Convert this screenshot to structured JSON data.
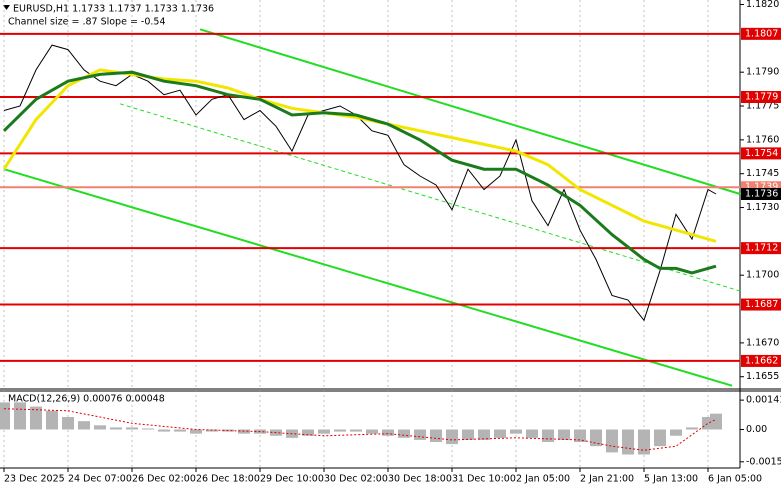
{
  "chart_data": [
    {
      "type": "line",
      "title": "EURUSD,H1  1.1733 1.1737 1.1733 1.1736",
      "subtitle": "Channel size = .87 Slope = -0.54",
      "xlim": [
        -1,
        184
      ],
      "xticks": [
        {
          "value": 0,
          "label": "23 Dec 2025"
        },
        {
          "value": 16,
          "label": "24 Dec 07:00"
        },
        {
          "value": 32,
          "label": "26 Dec 02:00"
        },
        {
          "value": 48,
          "label": "26 Dec 18:00"
        },
        {
          "value": 64,
          "label": "29 Dec 10:00"
        },
        {
          "value": 80,
          "label": "30 Dec 02:00"
        },
        {
          "value": 96,
          "label": "30 Dec 18:00"
        },
        {
          "value": 112,
          "label": "31 Dec 10:00"
        },
        {
          "value": 128,
          "label": "2 Jan 05:00"
        },
        {
          "value": 144,
          "label": "2 Jan 21:00"
        },
        {
          "value": 160,
          "label": "5 Jan 13:00"
        },
        {
          "value": 176,
          "label": "6 Jan 05:00"
        }
      ],
      "ylim": [
        1.165,
        1.1822
      ],
      "yticks": [
        {
          "value": 1.182,
          "label": "1.1820"
        },
        {
          "value": 1.179,
          "label": "1.1790"
        },
        1.1775,
        {
          "value": 1.176,
          "label": "1.1760"
        },
        1.1745,
        {
          "value": 1.173,
          "label": "1.1730"
        },
        {
          "value": 1.17,
          "label": "1.1700"
        },
        {
          "value": 1.167,
          "label": "1.1670"
        },
        1.1655
      ],
      "series": [
        {
          "color": "#000000",
          "x": [
            0,
            4,
            8,
            12,
            16,
            20,
            24,
            28,
            32,
            36,
            40,
            44,
            48,
            52,
            56,
            60,
            64,
            68,
            72,
            76,
            80,
            84,
            88,
            92,
            96,
            100,
            104,
            108,
            112,
            116,
            120,
            124,
            128,
            132,
            136,
            140,
            144,
            148,
            152,
            156,
            160,
            164,
            168,
            172,
            176,
            178
          ],
          "values": [
            1.1773,
            1.1775,
            1.1791,
            1.1802,
            1.18,
            1.1791,
            1.1786,
            1.1784,
            1.1789,
            1.1786,
            1.178,
            1.1782,
            1.1771,
            1.1778,
            1.178,
            1.1769,
            1.1773,
            1.1766,
            1.1755,
            1.1771,
            1.1773,
            1.1775,
            1.1771,
            1.1764,
            1.1762,
            1.1749,
            1.1744,
            1.174,
            1.1729,
            1.1747,
            1.1738,
            1.1744,
            1.176,
            1.1733,
            1.1722,
            1.1738,
            1.172,
            1.1707,
            1.1691,
            1.1689,
            1.168,
            1.1702,
            1.1727,
            1.1716,
            1.1738,
            1.1736
          ]
        },
        {
          "color": "#f2e600",
          "x": [
            0,
            8,
            16,
            24,
            32,
            40,
            48,
            56,
            64,
            72,
            80,
            88,
            96,
            104,
            112,
            120,
            128,
            136,
            144,
            152,
            160,
            168,
            176,
            178
          ],
          "values": [
            1.1747,
            1.1769,
            1.1784,
            1.1791,
            1.1789,
            1.1787,
            1.1786,
            1.1783,
            1.1778,
            1.1774,
            1.1772,
            1.177,
            1.1767,
            1.1764,
            1.1761,
            1.1758,
            1.1755,
            1.1749,
            1.1738,
            1.1731,
            1.1724,
            1.172,
            1.1716,
            1.1715
          ]
        },
        {
          "color": "#1b7a1b",
          "x": [
            0,
            8,
            16,
            24,
            32,
            40,
            48,
            56,
            64,
            72,
            80,
            88,
            96,
            104,
            112,
            120,
            128,
            136,
            144,
            152,
            160,
            164,
            168,
            172,
            178
          ],
          "values": [
            1.1764,
            1.1778,
            1.1786,
            1.1789,
            1.179,
            1.1786,
            1.1784,
            1.178,
            1.1778,
            1.1771,
            1.1772,
            1.1771,
            1.1767,
            1.176,
            1.1751,
            1.1747,
            1.1747,
            1.174,
            1.1731,
            1.1718,
            1.1707,
            1.1703,
            1.1703,
            1.1701,
            1.1704
          ]
        }
      ],
      "channels": [
        {
          "color": "#22dd22",
          "x": [
            49,
            184
          ],
          "values": [
            1.1809,
            1.1736
          ]
        },
        {
          "color": "#22dd22",
          "x": [
            0,
            182
          ],
          "values": [
            1.1747,
            1.1651
          ]
        },
        {
          "color": "#22dd22",
          "dashed": true,
          "x": [
            29,
            184
          ],
          "values": [
            1.1776,
            1.1693
          ]
        }
      ],
      "levels": [
        {
          "value": 1.1807,
          "color": "#e00000"
        },
        {
          "value": 1.1779,
          "color": "#e00000"
        },
        {
          "value": 1.1754,
          "color": "#e00000"
        },
        {
          "value": 1.1739,
          "color": "#f08070"
        },
        {
          "value": 1.1712,
          "color": "#e00000"
        },
        {
          "value": 1.1687,
          "color": "#e00000"
        },
        {
          "value": 1.1662,
          "color": "#e00000"
        }
      ],
      "price": {
        "value": 1.1736,
        "color": "#000000"
      }
    },
    {
      "type": "macd",
      "title": "MACD(12,26,9) 0.00076 0.00048",
      "xlim": [
        -1,
        184
      ],
      "ylim": [
        -0.0018,
        0.0018
      ],
      "yticks": [
        0.00141,
        {
          "value": 0,
          "label": "0.00"
        },
        -0.00155
      ],
      "x": [
        0,
        4,
        8,
        12,
        16,
        20,
        24,
        28,
        32,
        36,
        40,
        44,
        48,
        52,
        56,
        60,
        64,
        68,
        72,
        76,
        80,
        84,
        88,
        92,
        96,
        100,
        104,
        108,
        112,
        116,
        120,
        124,
        128,
        132,
        136,
        140,
        144,
        148,
        152,
        156,
        160,
        164,
        168,
        172,
        176,
        178
      ],
      "values": [
        0.0013,
        0.0013,
        0.0011,
        0.0009,
        0.0006,
        0.0004,
        0.0002,
        0.0001,
        0.0001,
        5e-05,
        -0.0001,
        -0.0001,
        -0.0002,
        -0.0001,
        -0.0001,
        -0.0002,
        -0.0002,
        -0.0003,
        -0.0004,
        -0.0003,
        -0.0002,
        -0.0001,
        -0.0001,
        -0.0002,
        -0.0003,
        -0.0004,
        -0.0005,
        -0.0006,
        -0.0007,
        -0.0005,
        -0.0005,
        -0.0004,
        -0.0002,
        -0.0004,
        -0.0006,
        -0.0005,
        -0.0006,
        -0.0008,
        -0.0011,
        -0.0012,
        -0.0012,
        -0.0008,
        -0.0003,
        0.0001,
        0.0006,
        0.00076
      ],
      "color": "#b4b4b4",
      "signal": {
        "color": "#e00000",
        "x": [
          0,
          16,
          32,
          48,
          64,
          80,
          96,
          112,
          128,
          144,
          152,
          160,
          168,
          176,
          178
        ],
        "values": [
          0.001,
          0.0009,
          0.0003,
          0,
          -0.0001,
          -0.0003,
          -0.0002,
          -0.0005,
          -0.0004,
          -0.0005,
          -0.0008,
          -0.001,
          -0.0008,
          0.0003,
          0.00048
        ]
      }
    }
  ]
}
